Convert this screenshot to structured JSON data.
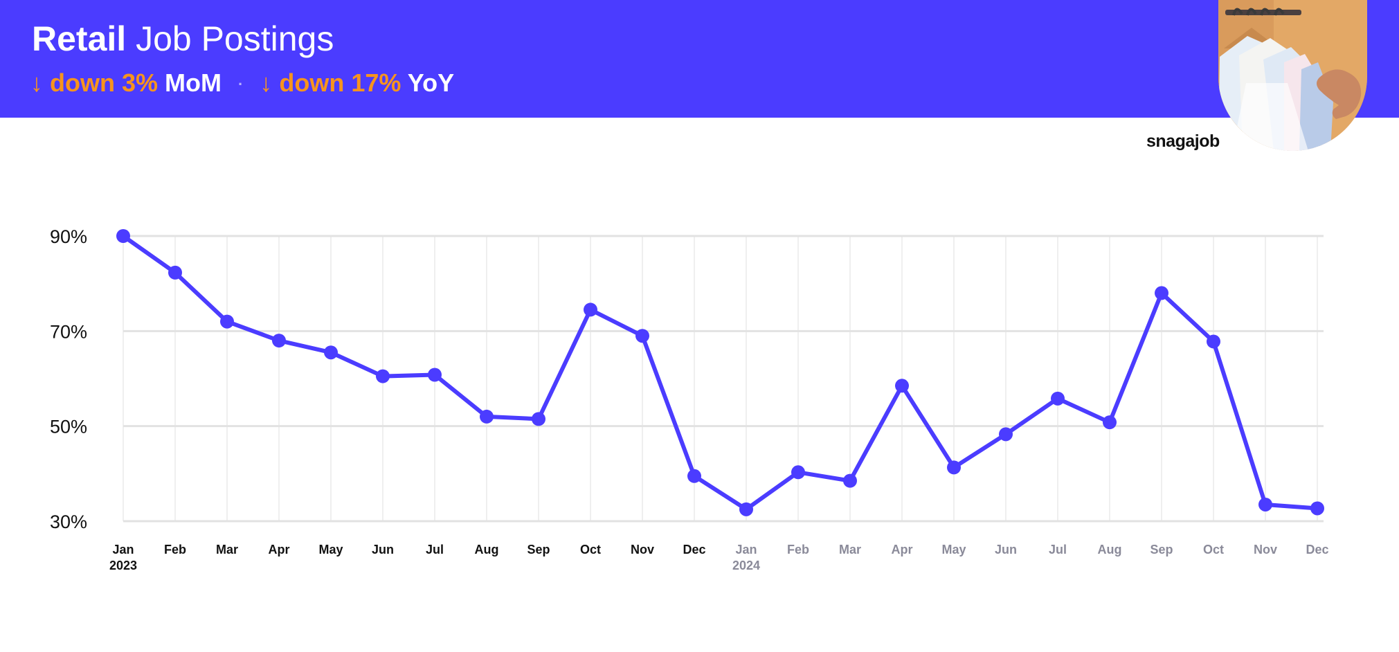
{
  "header": {
    "title_strong": "Retail",
    "title_rest": "Job Postings",
    "mom_arrow": "↓",
    "mom_change": "down 3%",
    "mom_label": "MoM",
    "separator": "·",
    "yoy_arrow": "↓",
    "yoy_change": "down 17%",
    "yoy_label": "YoY"
  },
  "brand": "snagajob",
  "colors": {
    "accent": "#4b3cff",
    "highlight": "#f7941d",
    "year_2023_ticks": "#111111",
    "year_2024_ticks": "#8a8a99"
  },
  "chart_data": {
    "type": "line",
    "title": "",
    "xlabel": "",
    "ylabel": "",
    "categories": [
      "Jan",
      "Feb",
      "Mar",
      "Apr",
      "May",
      "Jun",
      "Jul",
      "Aug",
      "Sep",
      "Oct",
      "Nov",
      "Dec",
      "Jan",
      "Feb",
      "Mar",
      "Apr",
      "May",
      "Jun",
      "Jul",
      "Aug",
      "Sep",
      "Oct",
      "Nov",
      "Dec"
    ],
    "year_labels": [
      {
        "index": 0,
        "label": "2023"
      },
      {
        "index": 12,
        "label": "2024"
      }
    ],
    "series": [
      {
        "values": [
          90,
          82.3,
          72,
          68,
          65.5,
          60.5,
          60.8,
          52,
          51.5,
          74.5,
          69,
          39.5,
          32.5,
          40.3,
          38.5,
          58.5,
          41.3,
          48.3,
          55.8,
          50.8,
          78,
          67.8,
          33.5,
          32.7
        ]
      }
    ],
    "yticks": [
      30,
      50,
      70,
      90
    ],
    "ytick_labels": [
      "30%",
      "50%",
      "70%",
      "90%"
    ],
    "ylim": [
      30,
      90
    ],
    "grid": true,
    "legend": "none"
  }
}
